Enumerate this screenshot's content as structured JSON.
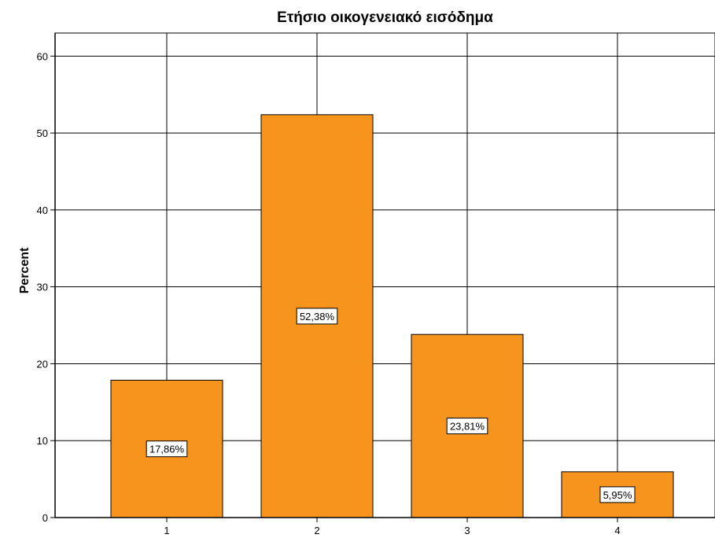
{
  "chart_data": {
    "type": "bar",
    "title": "Ετήσιο οικογενειακό εισόδημα",
    "xlabel": "",
    "ylabel": "Percent",
    "categories": [
      "1",
      "2",
      "3",
      "4"
    ],
    "values": [
      17.86,
      52.38,
      23.81,
      5.95
    ],
    "data_labels": [
      "17,86%",
      "52,38%",
      "23,81%",
      "5,95%"
    ],
    "ylim": [
      0,
      63
    ],
    "yticks": [
      0,
      10,
      20,
      30,
      40,
      50,
      60
    ],
    "grid": true,
    "bar_color": "#f7941d",
    "bar_edge_color": "#000000"
  }
}
